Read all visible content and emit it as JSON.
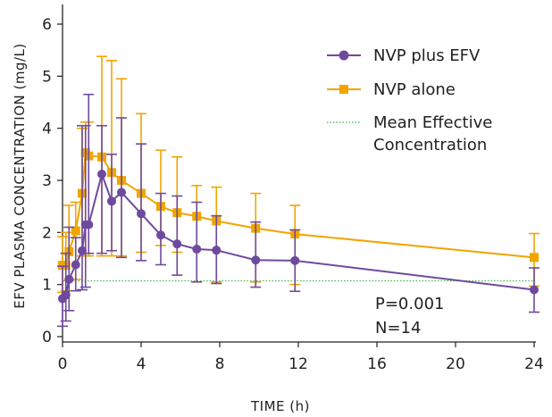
{
  "chart_data": {
    "type": "line",
    "title": "",
    "xlabel": "TIME (h)",
    "ylabel": "EFV PLASMA CONCENTRATION (mg/L)",
    "xlim": [
      0,
      24
    ],
    "ylim": [
      0,
      6
    ],
    "xticks": [
      0,
      4,
      8,
      12,
      16,
      20,
      24
    ],
    "yticks": [
      0,
      1,
      2,
      3,
      4,
      5,
      6
    ],
    "grid": false,
    "legend_position": "top-right",
    "series": [
      {
        "name": "NVP plus EFV",
        "color": "#6E4A9E",
        "marker": "circle",
        "x": [
          0,
          0.17,
          0.33,
          0.67,
          1,
          1.17,
          1.33,
          2,
          2.5,
          3,
          4,
          5,
          5.83,
          6.83,
          7.83,
          9.83,
          11.83,
          24
        ],
        "y": [
          0.73,
          0.8,
          1.1,
          1.38,
          1.65,
          2.15,
          2.15,
          3.12,
          2.6,
          2.77,
          2.36,
          1.95,
          1.78,
          1.68,
          1.66,
          1.47,
          1.46,
          0.9
        ],
        "err_upper": [
          1.35,
          1.6,
          2.1,
          1.9,
          4.05,
          4.05,
          4.65,
          4.05,
          3.5,
          4.2,
          3.7,
          2.75,
          2.7,
          2.58,
          2.32,
          2.2,
          2.05,
          1.32
        ],
        "err_lower": [
          0.2,
          0.3,
          0.5,
          0.88,
          0.9,
          0.95,
          1.6,
          1.6,
          1.65,
          1.52,
          1.46,
          1.38,
          1.18,
          1.05,
          1.02,
          0.95,
          0.87,
          0.47
        ]
      },
      {
        "name": "NVP alone",
        "color": "#F0A500",
        "marker": "square",
        "x": [
          0,
          0.17,
          0.33,
          0.67,
          1,
          1.17,
          1.33,
          2,
          2.5,
          3,
          4,
          5,
          5.83,
          6.83,
          7.83,
          9.83,
          11.83,
          24
        ],
        "y": [
          1.37,
          1.37,
          1.63,
          2.03,
          2.75,
          3.53,
          3.47,
          3.45,
          3.15,
          3.0,
          2.75,
          2.5,
          2.38,
          2.31,
          2.22,
          2.08,
          1.97,
          1.52
        ],
        "err_upper": [
          1.92,
          2.0,
          2.52,
          2.58,
          4.0,
          4.12,
          4.12,
          5.38,
          5.3,
          4.95,
          4.28,
          3.58,
          3.45,
          2.9,
          2.87,
          2.75,
          2.52,
          1.98
        ],
        "err_lower": [
          0.85,
          0.88,
          1.08,
          1.1,
          1.55,
          1.55,
          1.55,
          1.55,
          1.55,
          1.55,
          1.62,
          1.75,
          1.62,
          1.05,
          1.05,
          1.05,
          1.0,
          0.97
        ]
      }
    ],
    "reference_line": {
      "name": "Mean Effective Concentration",
      "name_line1": "Mean Effective",
      "name_line2": "Concentration",
      "y": 1.07,
      "color": "#3CB043",
      "style": "dotted"
    },
    "annotations": [
      "P=0.001",
      "N=14"
    ]
  }
}
